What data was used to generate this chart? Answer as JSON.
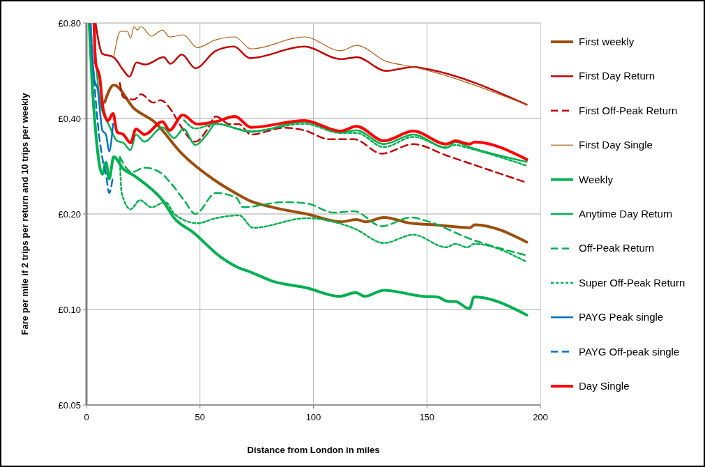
{
  "chart_data": {
    "type": "line",
    "xlabel": "Distance from London in miles",
    "ylabel": "Fare per mile if 2 trips per return and 10 trips per weekly",
    "xlim": [
      0,
      200
    ],
    "xticks": [
      0,
      50,
      100,
      150,
      200
    ],
    "ylim": [
      0.05,
      0.8
    ],
    "yticks": [
      {
        "value": 0.05,
        "label": "£0.05"
      },
      {
        "value": 0.1,
        "label": "£0.10"
      },
      {
        "value": 0.2,
        "label": "£0.20"
      },
      {
        "value": 0.4,
        "label": "£0.40"
      },
      {
        "value": 0.8,
        "label": "£0.80"
      }
    ],
    "log": true,
    "grid": true,
    "legend": "right",
    "marker": "none",
    "series": [
      {
        "name": "First weekly",
        "color": "#9c4f0c",
        "line_style": "solid",
        "x": [
          8,
          12,
          21,
          30,
          42,
          57,
          66,
          72,
          82,
          97,
          112,
          119,
          123,
          131,
          143,
          153,
          169,
          171,
          194
        ],
        "values": [
          0.45,
          0.51,
          0.43,
          0.39,
          0.31,
          0.254,
          0.232,
          0.22,
          0.21,
          0.2,
          0.189,
          0.192,
          0.189,
          0.195,
          0.187,
          0.185,
          0.181,
          0.185,
          0.163
        ]
      },
      {
        "name": "First Day Return",
        "color": "#c00000",
        "line_style": "solid",
        "x": [
          4,
          7,
          12,
          16,
          19,
          22,
          26,
          34,
          37,
          42,
          48,
          57,
          65,
          72,
          96,
          112,
          119,
          132,
          144,
          150,
          194
        ],
        "values": [
          0.8,
          0.64,
          0.624,
          0.571,
          0.542,
          0.6,
          0.592,
          0.624,
          0.595,
          0.636,
          0.576,
          0.654,
          0.674,
          0.62,
          0.674,
          0.615,
          0.624,
          0.565,
          0.582,
          0.573,
          0.442
        ]
      },
      {
        "name": "First Off-Peak Return",
        "color": "#c00000",
        "line_style": "dashed",
        "x": [
          14.7,
          16.3,
          21,
          24,
          29.5,
          32.6,
          37.8,
          40.9,
          48,
          53,
          57,
          63,
          67,
          72.5,
          87,
          96,
          107,
          118,
          130,
          144,
          158.5,
          194
        ],
        "values": [
          0.517,
          0.466,
          0.459,
          0.477,
          0.449,
          0.457,
          0.42,
          0.385,
          0.338,
          0.367,
          0.406,
          0.384,
          0.384,
          0.356,
          0.374,
          0.367,
          0.344,
          0.344,
          0.31,
          0.332,
          0.306,
          0.251
        ]
      },
      {
        "name": "First Day Single",
        "color": "#b0601a",
        "line_style": "solid",
        "x": [
          12,
          15,
          18,
          19.4,
          21,
          22.4,
          24,
          28.6,
          33.5,
          36.6,
          42.7,
          48.8,
          57,
          65.4,
          72.5,
          96,
          112,
          119,
          132,
          144,
          194
        ],
        "values": [
          0.624,
          0.753,
          0.753,
          0.716,
          0.78,
          0.76,
          0.78,
          0.727,
          0.76,
          0.723,
          0.734,
          0.669,
          0.708,
          0.723,
          0.663,
          0.723,
          0.654,
          0.68,
          0.606,
          0.582,
          0.442
        ]
      },
      {
        "name": "Weekly",
        "color": "#00b050",
        "line_style": "solid",
        "x": [
          1.2,
          2.5,
          4,
          7,
          8.6,
          10,
          12,
          16.3,
          21,
          25.5,
          33.5,
          38.7,
          47,
          59.3,
          66.4,
          72.5,
          81.7,
          97,
          111.5,
          118.6,
          122.6,
          131,
          148.4,
          154.5,
          159.4,
          162.5,
          168.7,
          170.8,
          194
        ],
        "values": [
          0.8,
          0.515,
          0.367,
          0.267,
          0.291,
          0.258,
          0.303,
          0.277,
          0.264,
          0.25,
          0.221,
          0.194,
          0.175,
          0.146,
          0.136,
          0.131,
          0.123,
          0.117,
          0.11,
          0.113,
          0.11,
          0.115,
          0.11,
          0.1095,
          0.106,
          0.106,
          0.1005,
          0.1095,
          0.096
        ]
      },
      {
        "name": "Anytime Day Return",
        "color": "#00b050",
        "line_style": "solid",
        "x": [
          3,
          6,
          10,
          13.5,
          16.3,
          19.4,
          21.8,
          25.5,
          33.5,
          38.7,
          42.7,
          48,
          53,
          57,
          72.5,
          96,
          112,
          119,
          131,
          144,
          158.5,
          162.5,
          168.7,
          194
        ],
        "values": [
          0.8,
          0.45,
          0.38,
          0.34,
          0.335,
          0.318,
          0.356,
          0.338,
          0.375,
          0.347,
          0.371,
          0.33,
          0.356,
          0.385,
          0.363,
          0.391,
          0.362,
          0.367,
          0.332,
          0.356,
          0.323,
          0.337,
          0.325,
          0.292
        ]
      },
      {
        "name": "Off-Peak Return",
        "color": "#00b050",
        "line_style": "dashed",
        "x": [
          14.7,
          20,
          25.5,
          32.6,
          36.6,
          43,
          48,
          57,
          66,
          69,
          87,
          97,
          109,
          118,
          130,
          143,
          150,
          169,
          194
        ],
        "values": [
          0.303,
          0.271,
          0.28,
          0.27,
          0.253,
          0.221,
          0.2,
          0.233,
          0.225,
          0.21,
          0.218,
          0.216,
          0.202,
          0.204,
          0.183,
          0.195,
          0.19,
          0.167,
          0.148
        ]
      },
      {
        "name": "Super Off-Peak Return",
        "color": "#00b050",
        "line_style": "dotted",
        "x": [
          14.7,
          15.5,
          19.4,
          23.6,
          28.6,
          34.8,
          38.7,
          49,
          57,
          67.3,
          73.4,
          97,
          118,
          131,
          144,
          158.5,
          162.5,
          167.7,
          170.8,
          194
        ],
        "values": [
          0.3,
          0.233,
          0.207,
          0.221,
          0.21,
          0.218,
          0.2,
          0.187,
          0.194,
          0.198,
          0.181,
          0.194,
          0.18,
          0.162,
          0.172,
          0.157,
          0.161,
          0.157,
          0.161,
          0.141
        ]
      },
      {
        "name": "PAYG Peak single",
        "color": "#0070c0",
        "line_style": "solid",
        "x": [
          1.8,
          3.4,
          5,
          7,
          8.6,
          10,
          11.7
        ],
        "values": [
          0.8,
          0.534,
          0.492,
          0.367,
          0.356,
          0.315,
          0.385
        ]
      },
      {
        "name": "PAYG Off-peak single",
        "color": "#0070c0",
        "line_style": "dashed",
        "x": [
          1.8,
          2.8,
          5,
          7,
          8.6,
          10,
          11.7
        ],
        "values": [
          0.8,
          0.608,
          0.385,
          0.3,
          0.267,
          0.233,
          0.264
        ]
      },
      {
        "name": "Day Single",
        "color": "#ff0000",
        "line_style": "solid",
        "x": [
          3.4,
          4,
          5.8,
          7.4,
          9.5,
          11.7,
          13.5,
          16.3,
          19.4,
          21.8,
          25.5,
          33.5,
          36.6,
          42.4,
          48.8,
          57,
          65.4,
          72.5,
          96,
          112,
          119,
          131,
          144,
          158.5,
          162.5,
          168.7,
          171,
          194
        ],
        "values": [
          0.8,
          0.6,
          0.542,
          0.427,
          0.394,
          0.415,
          0.362,
          0.356,
          0.335,
          0.371,
          0.356,
          0.391,
          0.367,
          0.41,
          0.384,
          0.391,
          0.406,
          0.375,
          0.394,
          0.365,
          0.378,
          0.34,
          0.365,
          0.332,
          0.34,
          0.332,
          0.337,
          0.297
        ]
      },
      {
        "color": "#00b050",
        "line_style": "dotted",
        "x": [
          43,
          48,
          57,
          72.5,
          96,
          112,
          119,
          131,
          144,
          158.5,
          162.5,
          168.7,
          194
        ],
        "values": [
          0.395,
          0.372,
          0.385,
          0.365,
          0.385,
          0.36,
          0.36,
          0.325,
          0.35,
          0.325,
          0.33,
          0.322,
          0.284
        ]
      }
    ]
  }
}
